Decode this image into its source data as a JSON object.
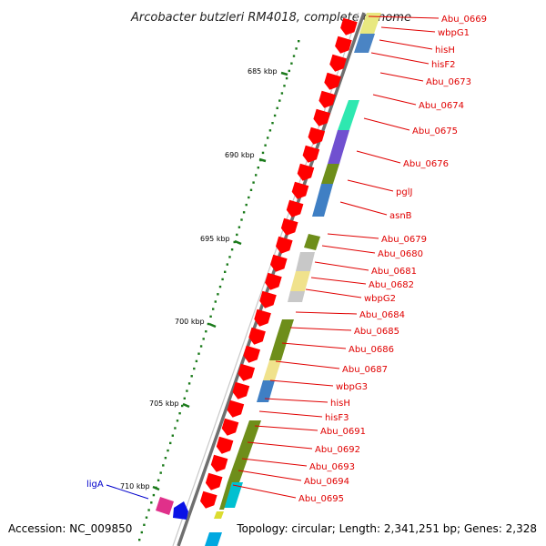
{
  "title": "Arcobacter butzleri RM4018, complete genome",
  "footer": {
    "accession": "Accession: NC_009850",
    "topology": "Topology: circular; Length: 2,341,251 bp; Genes: 2,328"
  },
  "ticks": [
    "685 kbp",
    "690 kbp",
    "695 kbp",
    "700 kbp",
    "705 kbp",
    "710 kbp"
  ],
  "genes": [
    "Abu_0669",
    "wbpG1",
    "hisH",
    "hisF2",
    "Abu_0673",
    "Abu_0674",
    "Abu_0675",
    "Abu_0676",
    "pglJ",
    "asnB",
    "Abu_0679",
    "Abu_0680",
    "Abu_0681",
    "Abu_0682",
    "wbpG2",
    "Abu_0684",
    "Abu_0685",
    "Abu_0686",
    "Abu_0687",
    "wbpG3",
    "hisH",
    "hisF3",
    "Abu_0691",
    "Abu_0692",
    "Abu_0693",
    "Abu_0694",
    "Abu_0695"
  ],
  "left_gene": "ligA",
  "colors": {
    "arrow": "#ff0000",
    "label": "#e00000",
    "leader": "#e00000",
    "backbone": "#888888",
    "tick": "#1a7a1a",
    "ligA": "#0000cc"
  }
}
